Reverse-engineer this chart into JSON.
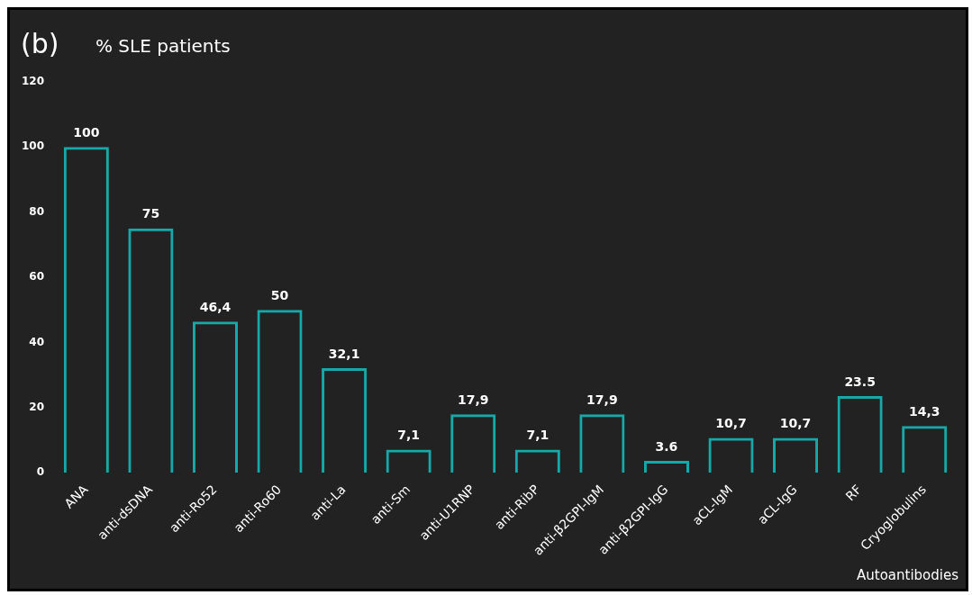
{
  "chart_data": {
    "type": "bar",
    "title": "(b)",
    "ylabel": "% SLE patients",
    "xlabel": "Autoantibodies",
    "categories": [
      "ANA",
      "anti-dsDNA",
      "anti-Ro52",
      "anti-Ro60",
      "anti-La",
      "anti-Sm",
      "anti-U1RNP",
      "anti-RibP",
      "anti-β2GPI-IgM",
      "anti-β2GPI-IgG",
      "aCL-IgM",
      "aCL-IgG",
      "RF",
      "Cryoglobulins"
    ],
    "values": [
      100,
      75,
      46.4,
      50,
      32.1,
      7.1,
      17.9,
      7.1,
      17.9,
      3.6,
      10.7,
      10.7,
      23.5,
      14.3
    ],
    "value_labels": [
      "100",
      "75",
      "46,4",
      "50",
      "32,1",
      "7,1",
      "17,9",
      "7,1",
      "17,9",
      "3.6",
      "10,7",
      "10,7",
      "23.5",
      "14,3"
    ],
    "color": "#17a9a9",
    "ylim": [
      0,
      120
    ],
    "yticks": [
      0,
      20,
      40,
      60,
      80,
      100,
      120
    ],
    "grid": false,
    "legend": false
  }
}
